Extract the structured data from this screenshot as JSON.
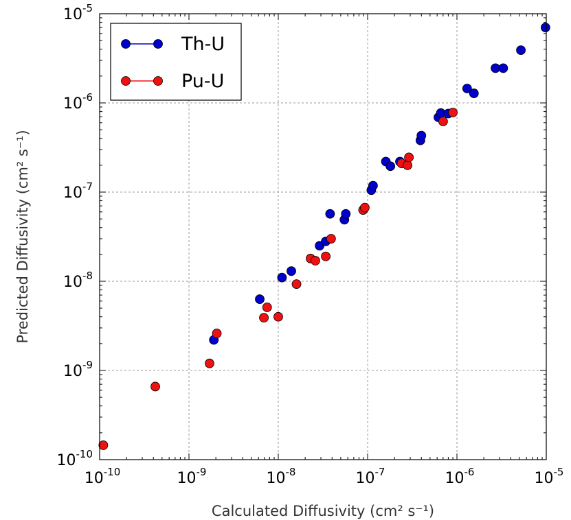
{
  "chart_data": {
    "type": "scatter",
    "x_scale": "log",
    "y_scale": "log",
    "xlim": [
      1e-10,
      1e-05
    ],
    "ylim": [
      1e-10,
      1e-05
    ],
    "grid": true,
    "legend_position": "top-left",
    "xlabel": "Calculated Diffusivity (cm² s⁻¹)",
    "ylabel": "Predicted Diffusivity (cm² s⁻¹)",
    "x_ticks": [
      {
        "base": "10",
        "exp": "-10"
      },
      {
        "base": "10",
        "exp": "-9"
      },
      {
        "base": "10",
        "exp": "-8"
      },
      {
        "base": "10",
        "exp": "-7"
      },
      {
        "base": "10",
        "exp": "-6"
      },
      {
        "base": "10",
        "exp": "-5"
      }
    ],
    "y_ticks": [
      {
        "base": "10",
        "exp": "-10"
      },
      {
        "base": "10",
        "exp": "-9"
      },
      {
        "base": "10",
        "exp": "-8"
      },
      {
        "base": "10",
        "exp": "-7"
      },
      {
        "base": "10",
        "exp": "-6"
      },
      {
        "base": "10",
        "exp": "-5"
      }
    ],
    "series": [
      {
        "name": "Th-U",
        "color": "#0000cc",
        "points": [
          [
            1.9e-09,
            2.2e-09
          ],
          [
            6.2e-09,
            6.3e-09
          ],
          [
            1.1e-08,
            1.1e-08
          ],
          [
            1.4e-08,
            1.3e-08
          ],
          [
            2.9e-08,
            2.5e-08
          ],
          [
            3.4e-08,
            2.8e-08
          ],
          [
            3.8e-08,
            5.7e-08
          ],
          [
            5.5e-08,
            4.9e-08
          ],
          [
            5.7e-08,
            5.7e-08
          ],
          [
            1.1e-07,
            1.05e-07
          ],
          [
            1.15e-07,
            1.18e-07
          ],
          [
            1.6e-07,
            2.2e-07
          ],
          [
            1.8e-07,
            1.95e-07
          ],
          [
            2.3e-07,
            2.2e-07
          ],
          [
            3.9e-07,
            3.8e-07
          ],
          [
            4e-07,
            4.3e-07
          ],
          [
            6.2e-07,
            6.9e-07
          ],
          [
            6.6e-07,
            7.7e-07
          ],
          [
            8e-07,
            7.6e-07
          ],
          [
            1.3e-06,
            1.45e-06
          ],
          [
            1.55e-06,
            1.28e-06
          ],
          [
            2.7e-06,
            2.45e-06
          ],
          [
            3.3e-06,
            2.45e-06
          ],
          [
            5.2e-06,
            3.9e-06
          ],
          [
            9.8e-06,
            7e-06
          ]
        ]
      },
      {
        "name": "Pu-U",
        "color": "#ee1111",
        "points": [
          [
            1.1e-10,
            1.45e-10
          ],
          [
            4.2e-10,
            6.6e-10
          ],
          [
            1.7e-09,
            1.2e-09
          ],
          [
            2.05e-09,
            2.6e-09
          ],
          [
            6.9e-09,
            3.9e-09
          ],
          [
            7.5e-09,
            5.1e-09
          ],
          [
            1e-08,
            4e-09
          ],
          [
            1.6e-08,
            9.3e-09
          ],
          [
            2.3e-08,
            1.8e-08
          ],
          [
            2.6e-08,
            1.7e-08
          ],
          [
            3.4e-08,
            1.9e-08
          ],
          [
            3.9e-08,
            3e-08
          ],
          [
            8.9e-08,
            6.3e-08
          ],
          [
            9.3e-08,
            6.7e-08
          ],
          [
            2.4e-07,
            2.1e-07
          ],
          [
            2.8e-07,
            2e-07
          ],
          [
            2.9e-07,
            2.45e-07
          ],
          [
            7e-07,
            6.2e-07
          ],
          [
            9e-07,
            7.8e-07
          ]
        ]
      }
    ]
  }
}
